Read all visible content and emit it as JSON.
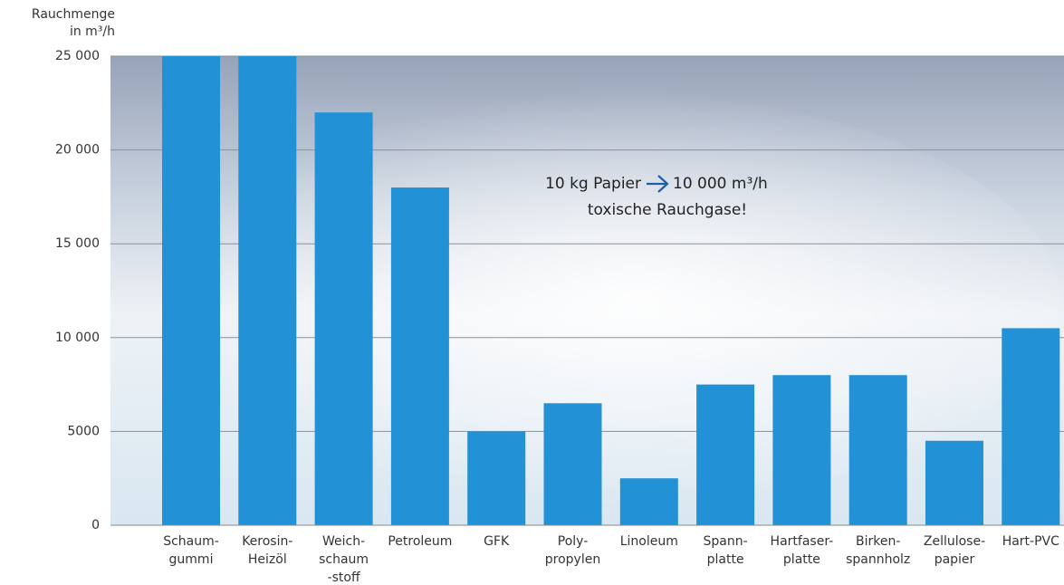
{
  "chart_data": {
    "type": "bar",
    "y_label": "Rauchmenge\nin m³/h",
    "annotation": {
      "left": "10 kg Papier",
      "right": "10 000 m³/h",
      "second_line": "toxische Rauchgase!"
    },
    "categories": [
      "Schaum-\ngummi",
      "Kerosin-\nHeizöl",
      "Weich-\nschaum\n-stoff",
      "Petroleum",
      "GFK",
      "Poly-\npropylen",
      "Linoleum",
      "Spann-\nplatte",
      "Hartfaser-\nplatte",
      "Birken-\nspannholz",
      "Zellulose-\npapier",
      "Hart-PVC"
    ],
    "values": [
      25000,
      25000,
      22000,
      18000,
      5000,
      6500,
      2500,
      7500,
      8000,
      8000,
      4500,
      10500
    ],
    "color": "#2391d5",
    "ylim": [
      0,
      25000
    ],
    "yticks": [
      0,
      5000,
      {
        "value": 10000,
        "label": "10 000"
      },
      {
        "value": 15000,
        "label": "15 000"
      },
      {
        "value": 20000,
        "label": "20 000"
      },
      {
        "value": 25000,
        "label": "25 000"
      }
    ],
    "grid": true
  }
}
